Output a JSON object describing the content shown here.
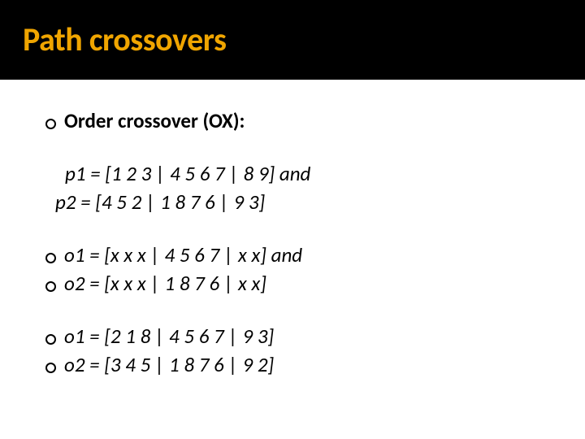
{
  "slide": {
    "title": "Path crossovers",
    "title_color": "#f0a500",
    "title_bg": "#000000",
    "body_bg": "#ffffff",
    "text_color": "#000000",
    "title_fontsize": 40,
    "body_fontsize": 25,
    "bullet_marker": "hollow-circle",
    "blocks": [
      {
        "type": "bullet",
        "bold": true,
        "text": "Order crossover (OX):"
      },
      {
        "type": "gap"
      },
      {
        "type": "indent",
        "italic": true,
        "text": " p1 = [1 2 3 | 4 5 6 7 | 8 9] and"
      },
      {
        "type": "indent2",
        "italic": true,
        "text": "p2 = [4 5 2 | 1 8 7 6 | 9 3]"
      },
      {
        "type": "gap"
      },
      {
        "type": "bullet",
        "italic": true,
        "text": "o1 = [x x x | 4 5 6 7 | x x] and"
      },
      {
        "type": "bullet",
        "italic": true,
        "text": "o2 = [x x x | 1 8 7 6 | x x]"
      },
      {
        "type": "gap"
      },
      {
        "type": "bullet",
        "italic": true,
        "text": "o1 = [2 1 8 | 4 5 6 7 | 9 3]"
      },
      {
        "type": "bullet",
        "italic": true,
        "text": "o2 = [3 4 5 | 1 8 7 6 | 9 2]"
      }
    ]
  }
}
